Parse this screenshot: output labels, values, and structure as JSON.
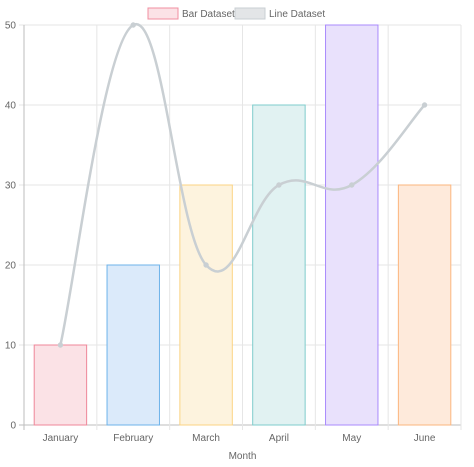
{
  "chart_data": {
    "type": "bar",
    "categories": [
      "January",
      "February",
      "March",
      "April",
      "May",
      "June"
    ],
    "xlabel": "Month",
    "ylabel": "",
    "ylim": [
      0,
      50
    ],
    "yticks": [
      "0",
      "10",
      "20",
      "30",
      "40",
      "50"
    ],
    "grid": true,
    "legend": "top-center",
    "series": [
      {
        "name": "Bar Dataset",
        "type": "bar",
        "values": [
          10,
          20,
          30,
          40,
          50,
          30
        ],
        "legend_fill": "#fbe2e6",
        "legend_stroke": "#f08fa0",
        "fills": [
          "#fbe2e6",
          "#dbeafa",
          "#fdf3de",
          "#e1f2f2",
          "#e9e1fc",
          "#feeadb"
        ],
        "strokes": [
          "#ef8799",
          "#6db3ea",
          "#fbd383",
          "#7ecccc",
          "#a98afc",
          "#fbb67d"
        ]
      },
      {
        "name": "Line Dataset",
        "type": "line",
        "values": [
          10,
          50,
          20,
          30,
          30,
          40
        ],
        "color": "#c9cfd3",
        "legend_fill": "#e3e5e7",
        "legend_stroke": "#c9cfd3"
      }
    ]
  }
}
